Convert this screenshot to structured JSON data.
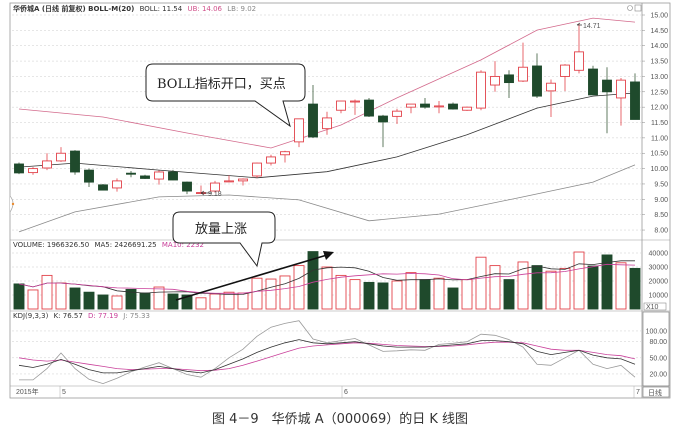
{
  "header": {
    "title": "华侨城A (日线 前复权) BOLL-M(20)",
    "boll": "BOLL: 11.54",
    "ub": "UB: 14.06",
    "lb": "LB: 9.02"
  },
  "volume_header": {
    "label": "VOLUME: 1966326.50",
    "ma5": "MA5: 2426691.25",
    "ma10": "MA10: 2232"
  },
  "kdj_header": {
    "label": "KDJ(9,3,3)",
    "k": "K: 76.57",
    "d": "D: 77.19",
    "j": "J: 75.33"
  },
  "annotations": {
    "boll_open": "BOLL指标开口，买点",
    "volume_up": "放量上涨",
    "low_label": "9.18",
    "high_label": "14.71"
  },
  "dates": {
    "year": "2015年",
    "m5": "5",
    "m6": "6",
    "m7": "7"
  },
  "period_button": "日线",
  "volume_unit": "X10",
  "caption": "图 4－9　华侨城 A（000069）的日 K 线图",
  "colors": {
    "up": "#e2424a",
    "down": "#1f4a2c",
    "ub": "#d36a8c",
    "mid": "#333333",
    "lb": "#8a8a8a",
    "k": "#333333",
    "d": "#c9409a",
    "j": "#9a9a9a"
  },
  "chart_data": {
    "type": "candlestick",
    "price_axis": {
      "ticks": [
        "15.00",
        "14.50",
        "14.00",
        "13.50",
        "13.00",
        "12.50",
        "12.00",
        "11.50",
        "11.00",
        "10.50",
        "10.00",
        "9.50",
        "9.00",
        "8.50",
        "8.00"
      ],
      "range": [
        8.0,
        15.0
      ]
    },
    "volume_axis": {
      "ticks": [
        "40000",
        "30000",
        "20000",
        "10000"
      ],
      "range": [
        0,
        40000
      ]
    },
    "kdj_axis": {
      "ticks": [
        "100.00",
        "80.00",
        "50.00",
        "20.00"
      ]
    },
    "ohlc": [
      [
        10.15,
        10.2,
        9.82,
        9.86
      ],
      [
        9.87,
        10.05,
        9.8,
        10.0
      ],
      [
        10.02,
        10.5,
        9.95,
        10.25
      ],
      [
        10.25,
        10.7,
        10.22,
        10.5
      ],
      [
        10.57,
        10.6,
        9.8,
        9.89
      ],
      [
        9.95,
        10.0,
        9.4,
        9.56
      ],
      [
        9.47,
        9.5,
        9.3,
        9.3
      ],
      [
        9.37,
        9.68,
        9.25,
        9.6
      ],
      [
        9.85,
        9.92,
        9.72,
        9.82
      ],
      [
        9.76,
        9.8,
        9.66,
        9.68
      ],
      [
        9.66,
        9.94,
        9.48,
        9.89
      ],
      [
        9.89,
        9.96,
        9.62,
        9.63
      ],
      [
        9.56,
        9.58,
        9.17,
        9.27
      ],
      [
        9.2,
        9.45,
        9.18,
        9.22
      ],
      [
        9.27,
        9.6,
        9.22,
        9.53
      ],
      [
        9.6,
        9.78,
        9.55,
        9.6
      ],
      [
        9.6,
        9.68,
        9.45,
        9.66
      ],
      [
        9.76,
        10.2,
        9.7,
        10.18
      ],
      [
        10.18,
        10.45,
        10.1,
        10.38
      ],
      [
        10.45,
        10.58,
        10.2,
        10.55
      ],
      [
        10.87,
        11.62,
        10.7,
        11.62
      ],
      [
        12.1,
        12.72,
        11.0,
        11.03
      ],
      [
        11.3,
        11.85,
        11.1,
        11.65
      ],
      [
        11.9,
        12.2,
        11.8,
        12.2
      ],
      [
        12.2,
        12.25,
        11.75,
        12.2
      ],
      [
        12.23,
        12.3,
        11.68,
        11.71
      ],
      [
        11.71,
        11.75,
        10.7,
        11.52
      ],
      [
        11.7,
        11.95,
        11.45,
        11.87
      ],
      [
        12.0,
        12.1,
        11.8,
        12.1
      ],
      [
        12.1,
        12.3,
        11.95,
        12.0
      ],
      [
        12.04,
        12.2,
        11.8,
        12.04
      ],
      [
        12.1,
        12.15,
        11.92,
        11.94
      ],
      [
        11.9,
        12.02,
        11.88,
        12.0
      ],
      [
        11.97,
        13.2,
        11.9,
        13.14
      ],
      [
        12.72,
        13.5,
        12.5,
        13.0
      ],
      [
        13.05,
        13.2,
        12.3,
        12.8
      ],
      [
        12.85,
        14.1,
        12.82,
        13.3
      ],
      [
        13.34,
        13.75,
        12.3,
        12.36
      ],
      [
        12.53,
        12.9,
        11.68,
        12.78
      ],
      [
        13.0,
        13.4,
        12.52,
        13.37
      ],
      [
        13.2,
        14.71,
        13.1,
        13.8
      ],
      [
        13.24,
        13.35,
        12.4,
        12.4
      ],
      [
        12.88,
        13.3,
        11.15,
        12.5
      ],
      [
        12.3,
        12.95,
        11.4,
        12.88
      ],
      [
        12.82,
        13.1,
        11.6,
        11.6
      ]
    ],
    "boll_upper": [
      [
        0,
        11.94
      ],
      [
        6,
        11.68
      ],
      [
        12,
        11.16
      ],
      [
        18,
        10.67
      ],
      [
        23,
        11.42
      ],
      [
        27,
        12.3
      ],
      [
        33,
        13.54
      ],
      [
        37,
        14.51
      ],
      [
        41,
        14.9
      ],
      [
        44,
        14.77
      ]
    ],
    "boll_mid": [
      [
        0,
        10.05
      ],
      [
        4,
        10.18
      ],
      [
        10,
        9.95
      ],
      [
        17,
        9.7
      ],
      [
        22,
        9.9
      ],
      [
        27,
        10.38
      ],
      [
        32,
        11.1
      ],
      [
        37,
        11.97
      ],
      [
        41,
        12.36
      ],
      [
        44,
        12.46
      ]
    ],
    "boll_lower": [
      [
        0,
        7.94
      ],
      [
        4,
        8.59
      ],
      [
        10,
        9.08
      ],
      [
        15,
        9.14
      ],
      [
        20,
        8.98
      ],
      [
        25,
        8.3
      ],
      [
        30,
        8.52
      ],
      [
        36,
        9.08
      ],
      [
        41,
        9.56
      ],
      [
        44,
        10.12
      ]
    ],
    "volume": [
      17900,
      13600,
      24000,
      18600,
      15000,
      12000,
      10000,
      9300,
      14000,
      11400,
      15700,
      10700,
      10000,
      8000,
      10700,
      12000,
      11400,
      22000,
      21400,
      23600,
      31000,
      41000,
      30000,
      24000,
      21000,
      19000,
      18600,
      20000,
      26000,
      21000,
      22000,
      15000,
      21000,
      37000,
      31000,
      21000,
      33600,
      31000,
      27000,
      29000,
      40700,
      30700,
      38600,
      33000,
      29000
    ],
    "kdj_k": [
      36,
      32,
      38,
      47,
      38,
      28,
      22,
      22,
      26,
      30,
      34,
      30,
      25,
      22,
      28,
      38,
      48,
      60,
      70,
      78,
      84,
      78,
      76,
      78,
      80,
      76,
      72,
      70,
      70,
      70,
      72,
      74,
      76,
      82,
      82,
      80,
      76,
      62,
      56,
      60,
      64,
      55,
      50,
      48,
      38
    ],
    "kdj_d": [
      50,
      46,
      44,
      46,
      42,
      38,
      34,
      30,
      28,
      29,
      30,
      30,
      28,
      26,
      27,
      30,
      36,
      44,
      52,
      60,
      68,
      72,
      74,
      76,
      78,
      77,
      75,
      73,
      72,
      71,
      71,
      72,
      74,
      77,
      79,
      79,
      78,
      72,
      66,
      64,
      64,
      60,
      56,
      54,
      48
    ],
    "kdj_j": [
      9,
      9,
      30,
      59,
      30,
      10,
      2,
      12,
      24,
      33,
      41,
      30,
      19,
      14,
      30,
      50,
      66,
      90,
      107,
      114,
      119,
      85,
      78,
      82,
      86,
      74,
      62,
      63,
      65,
      64,
      75,
      77,
      80,
      94,
      92,
      84,
      70,
      38,
      36,
      50,
      64,
      38,
      30,
      36,
      14
    ]
  }
}
